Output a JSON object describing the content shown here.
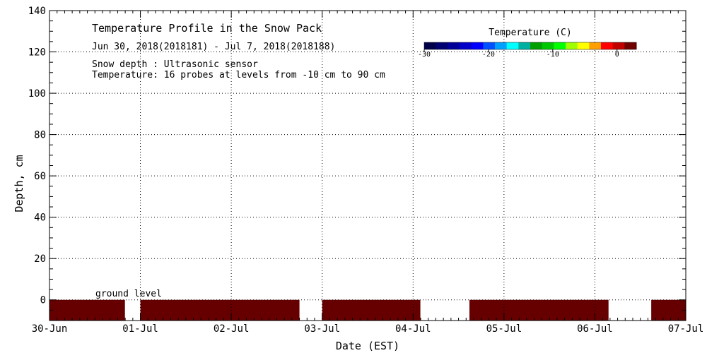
{
  "chart_data": {
    "type": "heatmap",
    "title": "Temperature Profile in the Snow Pack",
    "subtitle": "Jun 30, 2018(2018181) - Jul  7, 2018(2018188)",
    "notes": [
      "Snow depth : Ultrasonic sensor",
      "Temperature: 16 probes at levels from -10 cm to 90 cm"
    ],
    "annotation": "ground level",
    "xlabel": "Date (EST)",
    "ylabel": "Depth, cm",
    "x_ticks": [
      "30-Jun",
      "01-Jul",
      "02-Jul",
      "03-Jul",
      "04-Jul",
      "05-Jul",
      "06-Jul",
      "07-Jul"
    ],
    "xlim_days": [
      0,
      7
    ],
    "y_ticks": [
      0,
      20,
      40,
      60,
      80,
      100,
      120,
      140
    ],
    "ylim": [
      -10,
      140
    ],
    "grid": true,
    "colorbar": {
      "title": "Temperature (C)",
      "ticks": [
        -30,
        -20,
        -10,
        0
      ],
      "range": [
        -30,
        3
      ],
      "colors": [
        "#00004a",
        "#000070",
        "#000098",
        "#0000c8",
        "#0000ff",
        "#0050ff",
        "#00a0ff",
        "#00ffff",
        "#00b0a0",
        "#00a000",
        "#00c800",
        "#00ff00",
        "#a0ff00",
        "#ffff00",
        "#ffa000",
        "#ff0000",
        "#c00000",
        "#700000"
      ]
    },
    "observed_bands": [
      {
        "label": "ground level",
        "depth_range": [
          -10,
          0
        ],
        "color": "#660000",
        "time_segments_days": [
          [
            0.0,
            0.83
          ],
          [
            1.0,
            2.75
          ],
          [
            3.0,
            4.08
          ],
          [
            4.62,
            6.15
          ],
          [
            6.62,
            7.0
          ]
        ]
      }
    ]
  }
}
